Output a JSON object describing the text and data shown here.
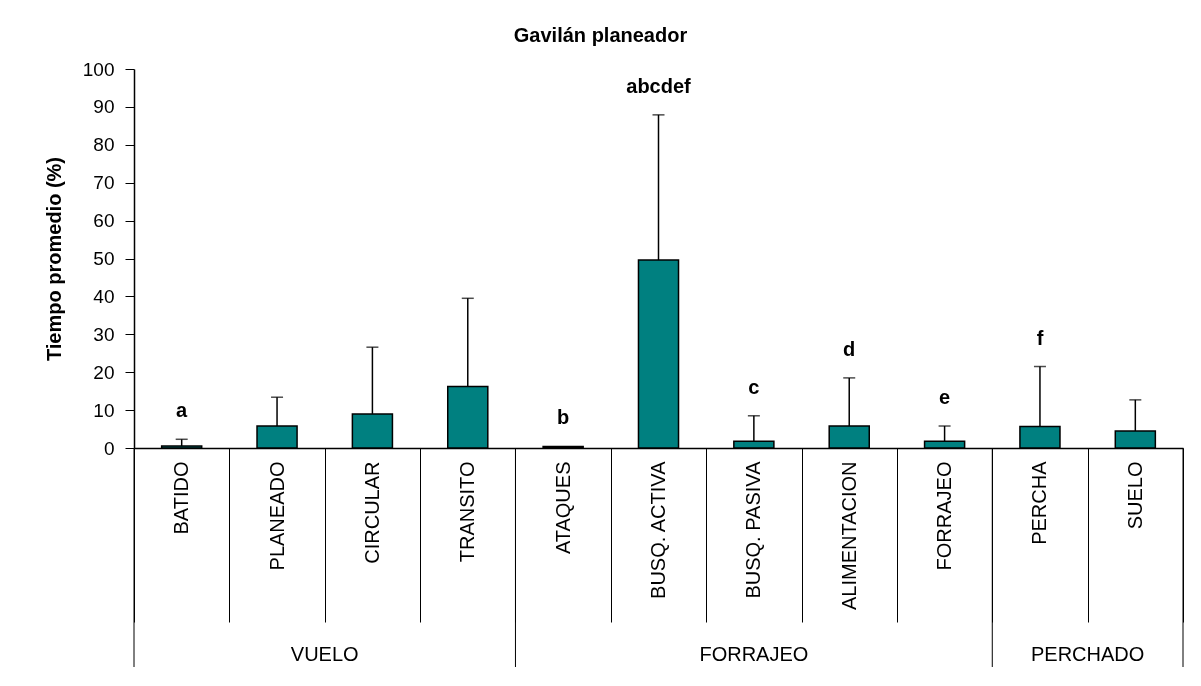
{
  "chart_data": {
    "type": "bar",
    "title": "Gavilán planeador",
    "ylabel": "Tiempo promedio (%)",
    "categories": [
      "BATIDO",
      "PLANEADO",
      "CIRCULAR",
      "TRANSITO",
      "ATAQUES",
      "BUSQ. ACTIVA",
      "BUSQ. PASIVA",
      "ALIMENTACION",
      "FORRAJEO",
      "PERCHA",
      "SUELO"
    ],
    "values": [
      0.5,
      5.8,
      9.0,
      16.2,
      0.4,
      49.6,
      1.8,
      5.8,
      1.8,
      5.7,
      4.5
    ],
    "errors": [
      [
        0.5,
        2.3
      ],
      [
        5.8,
        13.4
      ],
      [
        9.0,
        26.6
      ],
      [
        16.2,
        39.5
      ],
      null,
      [
        49.6,
        87.9
      ],
      [
        1.8,
        8.5
      ],
      [
        5.8,
        18.5
      ],
      [
        1.8,
        5.8
      ],
      [
        5.7,
        21.5
      ],
      [
        4.5,
        12.7
      ]
    ],
    "color": "#008080",
    "ylim": [
      0,
      100
    ],
    "yticks": [
      0,
      10,
      20,
      30,
      40,
      50,
      60,
      70,
      80,
      90,
      100
    ],
    "grid": false,
    "annotations": [
      {
        "text": "a",
        "x": "BATIDO",
        "y": 2.3
      },
      {
        "text": "b",
        "x": "ATAQUES",
        "y": 0.4
      },
      {
        "text": "abcdef",
        "x": "BUSQ. ACTIVA",
        "y": 87.9
      },
      {
        "text": "c",
        "x": "BUSQ. PASIVA",
        "y": 8.5
      },
      {
        "text": "d",
        "x": "ALIMENTACION",
        "y": 18.5
      },
      {
        "text": "e",
        "x": "FORRAJEO",
        "y": 5.8
      },
      {
        "text": "f",
        "x": "PERCHA",
        "y": 21.5
      },
      "VUELO",
      "FORRAJEO",
      "PERCHADO"
    ]
  }
}
